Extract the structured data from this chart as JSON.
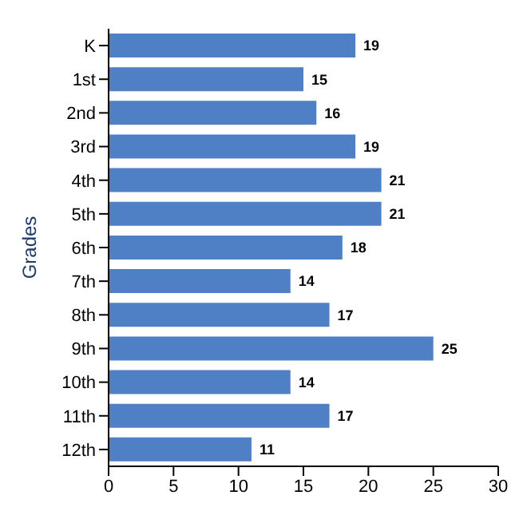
{
  "chart_data": {
    "type": "bar",
    "orientation": "horizontal",
    "ylabel": "Grades",
    "categories": [
      "K",
      "1st",
      "2nd",
      "3rd",
      "4th",
      "5th",
      "6th",
      "7th",
      "8th",
      "9th",
      "10th",
      "11th",
      "12th"
    ],
    "values": [
      19,
      15,
      16,
      19,
      21,
      21,
      18,
      14,
      17,
      25,
      14,
      17,
      11
    ],
    "color": "#4f7fc4",
    "xlim": [
      0,
      30
    ],
    "xticks": [
      0,
      5,
      10,
      15,
      20,
      25,
      30
    ],
    "data_labels": true
  }
}
